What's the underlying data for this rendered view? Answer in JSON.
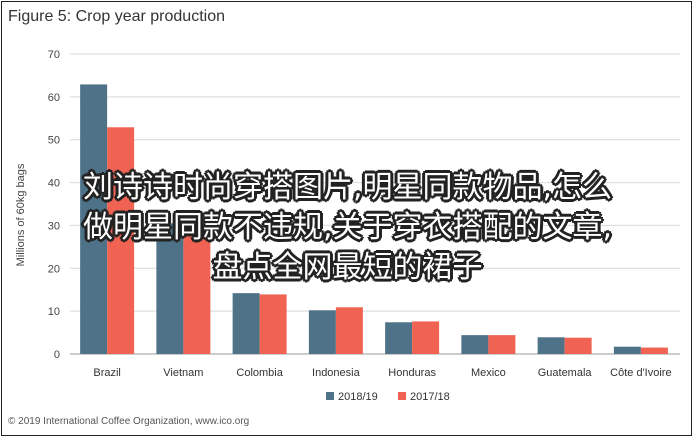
{
  "title": "Figure 5: Crop year production",
  "footer": "© 2019 International Coffee Organization, www.ico.org",
  "overlay_lines": [
    "刘诗诗时尚穿搭图片,明星同款物品,怎么",
    "做明星同款不违规,关于穿衣搭配的文章,",
    "盘点全网最短的裙子"
  ],
  "chart_data": {
    "type": "bar",
    "title": "Figure 5: Crop year production",
    "ylabel": "Millions of 60kg bags",
    "ylim": [
      0,
      70
    ],
    "yticks": [
      0,
      10,
      20,
      30,
      40,
      50,
      60,
      70
    ],
    "grid": true,
    "legend_position": "bottom",
    "categories": [
      "Brazil",
      "Vietnam",
      "Colombia",
      "Indonesia",
      "Honduras",
      "Mexico",
      "Guatemala",
      "Côte d'Ivoire"
    ],
    "series": [
      {
        "name": "2018/19",
        "color": "#4e7389",
        "values": [
          62.9,
          30.5,
          14.2,
          10.2,
          7.4,
          4.4,
          3.9,
          1.7
        ]
      },
      {
        "name": "2017/18",
        "color": "#f06252",
        "values": [
          52.9,
          30.0,
          13.9,
          10.9,
          7.6,
          4.4,
          3.8,
          1.5
        ]
      }
    ]
  }
}
